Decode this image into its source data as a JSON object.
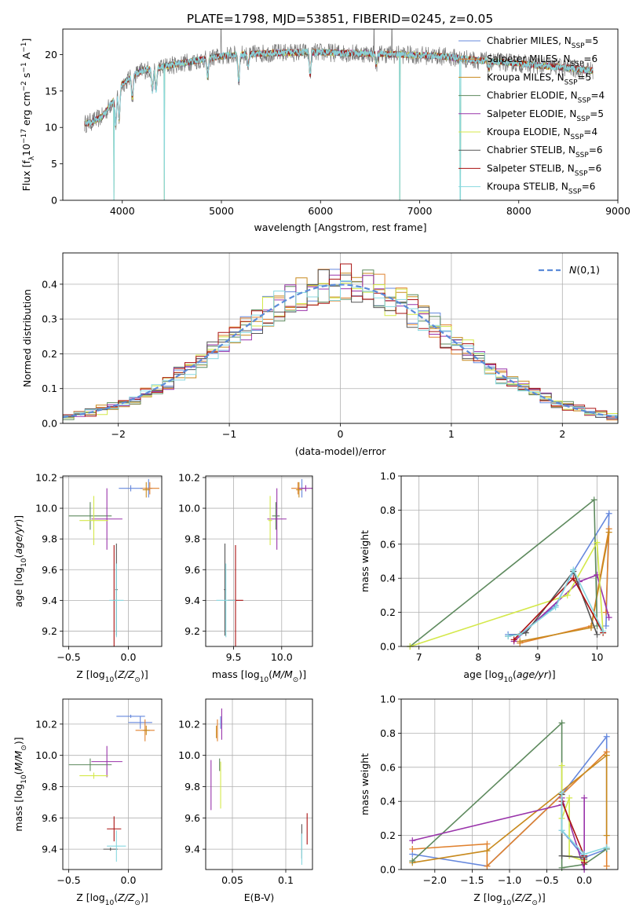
{
  "figure_title": "PLATE=1798, MJD=53851, FIBERID=0245, z=0.05",
  "models": [
    {
      "name": "Chabrier MILES",
      "nssp": "5",
      "color": "#6688dd"
    },
    {
      "name": "Salpeter MILES",
      "nssp": "6",
      "color": "#e0812e"
    },
    {
      "name": "Kroupa MILES",
      "nssp": "5",
      "color": "#c88a1e"
    },
    {
      "name": "Chabrier ELODIE",
      "nssp": "4",
      "color": "#5e8a5e"
    },
    {
      "name": "Salpeter ELODIE",
      "nssp": "5",
      "color": "#9933aa"
    },
    {
      "name": "Kroupa ELODIE",
      "nssp": "4",
      "color": "#d4e84a"
    },
    {
      "name": "Chabrier STELIB",
      "nssp": "6",
      "color": "#555555"
    },
    {
      "name": "Salpeter STELIB",
      "nssp": "6",
      "color": "#aa1111"
    },
    {
      "name": "Kroupa STELIB",
      "nssp": "6",
      "color": "#88d8e0"
    }
  ],
  "chart_data": [
    {
      "id": "spectrum",
      "type": "line",
      "xlabel": "wavelength [Angstrom, rest frame]",
      "ylabel": "Flux [f",
      "xlim": [
        3400,
        9000
      ],
      "ylim": [
        0,
        23.5
      ],
      "xticks": [
        4000,
        5000,
        6000,
        7000,
        8000,
        9000
      ],
      "yticks": [
        0,
        5,
        10,
        15,
        20
      ],
      "data_color": "#777777",
      "model_color": "#88d8e0",
      "legend_position": "top-right",
      "continuum": {
        "x": [
          3620,
          3700,
          3800,
          3900,
          4000,
          4100,
          4200,
          4400,
          4600,
          4800,
          5000,
          5200,
          5500,
          5800,
          6000,
          6300,
          6600,
          6800,
          7000,
          7200,
          7400,
          7600,
          7800,
          8000,
          8200,
          8400,
          8600,
          8750
        ],
        "y": [
          10.5,
          10.8,
          11.5,
          13.5,
          16.0,
          17.0,
          17.8,
          18.3,
          18.8,
          19.3,
          19.8,
          20.0,
          20.2,
          20.3,
          20.3,
          20.2,
          20.1,
          20.0,
          19.9,
          19.8,
          19.5,
          19.2,
          19.0,
          18.8,
          18.5,
          18.3,
          18.0,
          17.8
        ]
      },
      "absorption_lines": [
        {
          "x": 3934,
          "depth": 4.0
        },
        {
          "x": 3969,
          "depth": 4.0
        },
        {
          "x": 4102,
          "depth": 3.0
        },
        {
          "x": 4304,
          "depth": 3.0
        },
        {
          "x": 4341,
          "depth": 3.0
        },
        {
          "x": 4861,
          "depth": 2.5
        },
        {
          "x": 5175,
          "depth": 3.5
        },
        {
          "x": 5270,
          "depth": 1.5
        },
        {
          "x": 5895,
          "depth": 3.0
        },
        {
          "x": 6563,
          "depth": 1.5
        },
        {
          "x": 7700,
          "depth": 1.0
        }
      ],
      "gaps": [
        3915,
        4425,
        6800,
        7410
      ],
      "spikes": [
        6540,
        6720,
        4995
      ]
    },
    {
      "id": "residuals",
      "type": "bar",
      "xlabel": "(data-model)/error",
      "ylabel": "Normed distribution",
      "xlim": [
        -2.5,
        2.5
      ],
      "ylim": [
        0,
        0.49
      ],
      "xticks": [
        -2,
        -1,
        0,
        1,
        2
      ],
      "yticks": [
        0.0,
        0.1,
        0.2,
        0.3,
        0.4
      ],
      "bin_width": 0.1,
      "legend_position": "top-right",
      "legend_label": "N(0,1)",
      "gaussian_color": "#5b8bd9"
    },
    {
      "id": "age-vs-z",
      "type": "scatter",
      "xlabel": "Z [log",
      "ylabel": "age  [log",
      "xlim": [
        -0.55,
        0.28
      ],
      "ylim": [
        9.1,
        10.21
      ],
      "xticks": [
        -0.5,
        0.0
      ],
      "yticks": [
        9.2,
        9.4,
        9.6,
        9.8,
        10.0,
        10.2
      ],
      "points": [
        {
          "model": 0,
          "x": 0.17,
          "y": 10.13,
          "xerr": 0.03,
          "yerr": 0.06
        },
        {
          "model": 1,
          "x": 0.18,
          "y": 10.13,
          "xerr": 0.08,
          "yerr": 0.04
        },
        {
          "model": 2,
          "x": 0.15,
          "y": 10.12,
          "xerr": 0.03,
          "yerr": 0.05
        },
        {
          "model": 3,
          "x": -0.32,
          "y": 9.95,
          "xerr": 0.18,
          "yerr": 0.09
        },
        {
          "model": 4,
          "x": -0.18,
          "y": 9.93,
          "xerr": 0.13,
          "yerr": 0.2
        },
        {
          "model": 5,
          "x": -0.29,
          "y": 9.92,
          "xerr": 0.12,
          "yerr": 0.16
        },
        {
          "model": 6,
          "x": -0.1,
          "y": 9.47,
          "xerr": 0.01,
          "yerr": 0.3
        },
        {
          "model": 7,
          "x": -0.12,
          "y": 9.4,
          "xerr": 0.01,
          "yerr": 0.36
        },
        {
          "model": 8,
          "x": -0.1,
          "y": 9.4,
          "xerr": 0.06,
          "yerr": 0.24
        },
        {
          "model": 0,
          "x": 0.02,
          "y": 10.13,
          "xerr": 0.1,
          "yerr": 0.02
        }
      ]
    },
    {
      "id": "age-vs-mass",
      "type": "scatter",
      "xlabel": "mass [log",
      "ylabel": "",
      "xlim": [
        9.21,
        10.32
      ],
      "ylim": [
        9.1,
        10.21
      ],
      "xticks": [
        9.5,
        10.0
      ],
      "yticks": [
        9.2,
        9.4,
        9.6,
        9.8,
        10.0,
        10.2
      ],
      "points": [
        {
          "model": 0,
          "x": 10.21,
          "y": 10.13,
          "xerr": 0.04,
          "yerr": 0.06
        },
        {
          "model": 1,
          "x": 10.17,
          "y": 10.13,
          "xerr": 0.07,
          "yerr": 0.04
        },
        {
          "model": 2,
          "x": 10.18,
          "y": 10.12,
          "xerr": 0.03,
          "yerr": 0.05
        },
        {
          "model": 3,
          "x": 9.94,
          "y": 9.95,
          "xerr": 0.04,
          "yerr": 0.09
        },
        {
          "model": 4,
          "x": 9.95,
          "y": 9.93,
          "xerr": 0.1,
          "yerr": 0.2
        },
        {
          "model": 5,
          "x": 9.88,
          "y": 9.92,
          "xerr": 0.02,
          "yerr": 0.16
        },
        {
          "model": 6,
          "x": 9.41,
          "y": 9.47,
          "xerr": 0.01,
          "yerr": 0.3
        },
        {
          "model": 7,
          "x": 9.52,
          "y": 9.4,
          "xerr": 0.08,
          "yerr": 0.36
        },
        {
          "model": 8,
          "x": 9.42,
          "y": 9.4,
          "xerr": 0.1,
          "yerr": 0.24
        },
        {
          "model": 4,
          "x": 10.25,
          "y": 10.13,
          "xerr": 0.07,
          "yerr": 0.02
        }
      ]
    },
    {
      "id": "massweight-vs-age",
      "type": "line",
      "xlabel": "age  [log",
      "ylabel": "mass weight",
      "xlim": [
        6.7,
        10.35
      ],
      "ylim": [
        0,
        1.0
      ],
      "xticks": [
        7,
        8,
        9,
        10
      ],
      "yticks": [
        0.0,
        0.2,
        0.4,
        0.6,
        0.8,
        1.0
      ],
      "series": [
        {
          "model": 0,
          "x": [
            8.5,
            8.7,
            9.3,
            9.6,
            10.2,
            10.15
          ],
          "y": [
            0.07,
            0.07,
            0.24,
            0.44,
            0.78,
            0.12
          ]
        },
        {
          "model": 1,
          "x": [
            8.7,
            9.9,
            10.2,
            10.15
          ],
          "y": [
            0.02,
            0.12,
            0.69,
            0.2
          ]
        },
        {
          "model": 2,
          "x": [
            8.7,
            9.9,
            10.2
          ],
          "y": [
            0.03,
            0.11,
            0.67
          ]
        },
        {
          "model": 3,
          "x": [
            6.85,
            9.95,
            10.0
          ],
          "y": [
            0.0,
            0.86,
            0.12
          ]
        },
        {
          "model": 4,
          "x": [
            8.6,
            9.7,
            10.0,
            10.2
          ],
          "y": [
            0.03,
            0.38,
            0.42,
            0.17
          ]
        },
        {
          "model": 5,
          "x": [
            6.85,
            9.5,
            10.0,
            10.1
          ],
          "y": [
            0.0,
            0.3,
            0.61,
            0.08
          ]
        },
        {
          "model": 6,
          "x": [
            8.5,
            8.8,
            9.6,
            10.0
          ],
          "y": [
            0.06,
            0.08,
            0.44,
            0.07
          ]
        },
        {
          "model": 7,
          "x": [
            8.6,
            9.6,
            10.1
          ],
          "y": [
            0.04,
            0.4,
            0.08
          ]
        },
        {
          "model": 8,
          "x": [
            8.5,
            8.7,
            9.3,
            9.6,
            10.1
          ],
          "y": [
            0.06,
            0.07,
            0.23,
            0.45,
            0.09
          ]
        }
      ]
    },
    {
      "id": "mass-vs-z",
      "type": "scatter",
      "xlabel": "Z [log",
      "ylabel": "mass [log",
      "xlim": [
        -0.55,
        0.28
      ],
      "ylim": [
        9.27,
        10.36
      ],
      "xticks": [
        -0.5,
        0.0
      ],
      "yticks": [
        9.4,
        9.6,
        9.8,
        10.0,
        10.2
      ],
      "points": [
        {
          "model": 0,
          "x": 0.1,
          "y": 10.21,
          "xerr": 0.1,
          "yerr": 0.04
        },
        {
          "model": 1,
          "x": 0.14,
          "y": 10.16,
          "xerr": 0.08,
          "yerr": 0.07
        },
        {
          "model": 2,
          "x": 0.15,
          "y": 10.16,
          "xerr": 0.03,
          "yerr": 0.03
        },
        {
          "model": 3,
          "x": -0.32,
          "y": 9.94,
          "xerr": 0.18,
          "yerr": 0.04
        },
        {
          "model": 4,
          "x": -0.18,
          "y": 9.96,
          "xerr": 0.13,
          "yerr": 0.1
        },
        {
          "model": 5,
          "x": -0.29,
          "y": 9.87,
          "xerr": 0.12,
          "yerr": 0.02
        },
        {
          "model": 6,
          "x": -0.15,
          "y": 9.4,
          "xerr": 0.06,
          "yerr": 0.01
        },
        {
          "model": 7,
          "x": -0.12,
          "y": 9.53,
          "xerr": 0.06,
          "yerr": 0.08
        },
        {
          "model": 8,
          "x": -0.1,
          "y": 9.42,
          "xerr": 0.08,
          "yerr": 0.1
        },
        {
          "model": 0,
          "x": 0.02,
          "y": 10.25,
          "xerr": 0.12,
          "yerr": 0.01
        }
      ]
    },
    {
      "id": "mass-vs-ebv",
      "type": "scatter",
      "xlabel": "E(B-V)",
      "ylabel": "",
      "xlim": [
        0.025,
        0.125
      ],
      "ylim": [
        9.27,
        10.36
      ],
      "xticks": [
        0.05,
        0.1
      ],
      "yticks": [
        9.4,
        9.6,
        9.8,
        10.0,
        10.2
      ],
      "points": [
        {
          "model": 0,
          "x": 0.039,
          "y": 10.21,
          "xerr": 0.0,
          "yerr": 0.04
        },
        {
          "model": 1,
          "x": 0.036,
          "y": 10.16,
          "xerr": 0.0,
          "yerr": 0.07
        },
        {
          "model": 2,
          "x": 0.035,
          "y": 10.15,
          "xerr": 0.0,
          "yerr": 0.04
        },
        {
          "model": 3,
          "x": 0.038,
          "y": 9.94,
          "xerr": 0.0,
          "yerr": 0.04
        },
        {
          "model": 4,
          "x": 0.03,
          "y": 9.81,
          "xerr": 0.0,
          "yerr": 0.16
        },
        {
          "model": 5,
          "x": 0.039,
          "y": 9.81,
          "xerr": 0.0,
          "yerr": 0.15
        },
        {
          "model": 6,
          "x": 0.115,
          "y": 9.45,
          "xerr": 0.0,
          "yerr": 0.11
        },
        {
          "model": 7,
          "x": 0.12,
          "y": 9.53,
          "xerr": 0.0,
          "yerr": 0.1
        },
        {
          "model": 8,
          "x": 0.115,
          "y": 9.4,
          "xerr": 0.0,
          "yerr": 0.1
        },
        {
          "model": 4,
          "x": 0.04,
          "y": 10.2,
          "xerr": 0.0,
          "yerr": 0.1
        }
      ]
    },
    {
      "id": "massweight-vs-z",
      "type": "line",
      "xlabel": "Z [log",
      "ylabel": "mass weight",
      "xlim": [
        -2.45,
        0.45
      ],
      "ylim": [
        0,
        1.0
      ],
      "xticks": [
        -2.0,
        -1.5,
        -1.0,
        -0.5,
        0.0
      ],
      "yticks": [
        0.0,
        0.2,
        0.4,
        0.6,
        0.8,
        1.0
      ],
      "series": [
        {
          "model": 0,
          "x": [
            -2.3,
            -1.3,
            -0.3,
            0.3,
            0.3,
            0.0,
            -0.3
          ],
          "y": [
            0.09,
            0.02,
            0.44,
            0.78,
            0.12,
            0.07,
            0.23
          ]
        },
        {
          "model": 1,
          "x": [
            -2.3,
            -1.3,
            -1.3,
            0.3,
            0.3
          ],
          "y": [
            0.12,
            0.15,
            0.02,
            0.69,
            0.02
          ]
        },
        {
          "model": 2,
          "x": [
            -2.3,
            -1.3,
            0.3,
            0.3
          ],
          "y": [
            0.04,
            0.11,
            0.67,
            0.2
          ]
        },
        {
          "model": 3,
          "x": [
            -2.3,
            -0.3,
            -0.3,
            0.0,
            0.3
          ],
          "y": [
            0.05,
            0.86,
            0.01,
            0.03,
            0.12
          ]
        },
        {
          "model": 4,
          "x": [
            -2.3,
            -0.3,
            -0.3,
            0.0,
            0.0
          ],
          "y": [
            0.17,
            0.38,
            0.42,
            0.0,
            0.42
          ]
        },
        {
          "model": 5,
          "x": [
            -0.3,
            -0.3,
            -0.2,
            -0.2,
            0.0
          ],
          "y": [
            0.61,
            0.3,
            0.42,
            0.08,
            0.05
          ]
        },
        {
          "model": 6,
          "x": [
            -0.3,
            -0.3,
            0.0,
            0.0
          ],
          "y": [
            0.44,
            0.08,
            0.07,
            0.06
          ]
        },
        {
          "model": 7,
          "x": [
            -0.3,
            0.0,
            0.0
          ],
          "y": [
            0.4,
            0.08,
            0.04
          ]
        },
        {
          "model": 8,
          "x": [
            -0.3,
            -0.3,
            0.0,
            0.3
          ],
          "y": [
            0.45,
            0.23,
            0.09,
            0.13
          ]
        }
      ]
    }
  ]
}
